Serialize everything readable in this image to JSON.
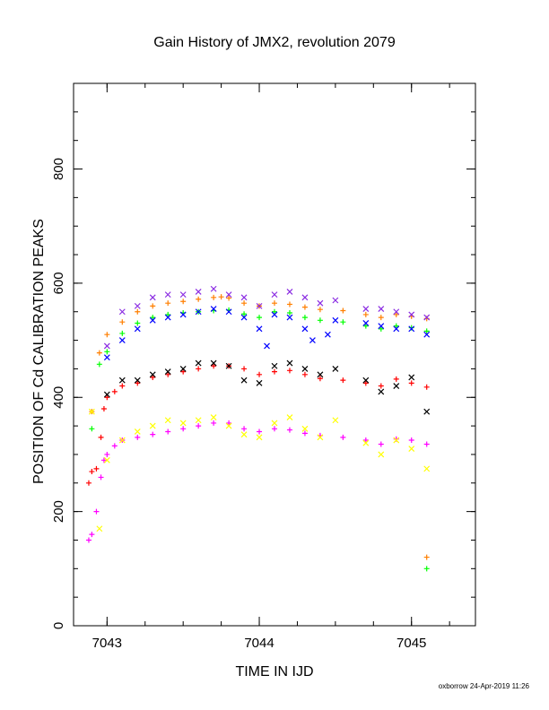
{
  "chart_data": {
    "type": "scatter",
    "title": "Gain History of JMX2, revolution 2079",
    "xlabel": "TIME IN IJD",
    "ylabel": "POSITION OF Cd CALIBRATION PEAKS",
    "xlim": [
      7042.78,
      7045.42
    ],
    "ylim": [
      0,
      950
    ],
    "x_ticks": [
      7043,
      7044,
      7045
    ],
    "y_ticks": [
      0,
      200,
      400,
      600,
      800
    ],
    "grid": false,
    "legend": "none",
    "markers": [
      "cross",
      "plus"
    ],
    "colors": {
      "orange": "#ff7f00",
      "purple": "#8a2be2",
      "green": "#00ff00",
      "blue": "#0000ff",
      "red": "#ff0000",
      "black": "#000000",
      "magenta": "#ff00ff",
      "yellow": "#ffff00"
    },
    "series": [
      {
        "color": "orange",
        "marker": "plus",
        "x": [
          7042.9,
          7042.95,
          7043.0,
          7043.1,
          7043.2,
          7043.3,
          7043.4,
          7043.5,
          7043.6,
          7043.7,
          7043.75,
          7043.8,
          7043.9,
          7044.0,
          7044.1,
          7044.2,
          7044.3,
          7044.4,
          7044.55,
          7044.7,
          7044.8,
          7044.9,
          7045.0,
          7045.1,
          7045.1
        ],
        "y": [
          375,
          478,
          510,
          532,
          550,
          560,
          565,
          568,
          572,
          575,
          576,
          574,
          565,
          560,
          565,
          563,
          558,
          554,
          552,
          545,
          540,
          545,
          542,
          538,
          120
        ]
      },
      {
        "color": "purple",
        "marker": "cross",
        "x": [
          7043.0,
          7043.1,
          7043.2,
          7043.3,
          7043.4,
          7043.5,
          7043.6,
          7043.7,
          7043.8,
          7043.9,
          7044.0,
          7044.1,
          7044.2,
          7044.3,
          7044.4,
          7044.5,
          7044.7,
          7044.8,
          7044.9,
          7045.0,
          7045.1
        ],
        "y": [
          490,
          550,
          560,
          575,
          580,
          580,
          585,
          590,
          580,
          575,
          560,
          580,
          585,
          575,
          565,
          570,
          555,
          555,
          550,
          545,
          540
        ]
      },
      {
        "color": "green",
        "marker": "plus",
        "x": [
          7042.9,
          7042.95,
          7043.0,
          7043.1,
          7043.2,
          7043.3,
          7043.4,
          7043.5,
          7043.6,
          7043.7,
          7043.8,
          7043.9,
          7044.0,
          7044.1,
          7044.2,
          7044.3,
          7044.4,
          7044.55,
          7044.7,
          7044.8,
          7044.9,
          7045.0,
          7045.1,
          7045.1
        ],
        "y": [
          345,
          458,
          480,
          512,
          530,
          540,
          545,
          548,
          550,
          552,
          553,
          546,
          540,
          550,
          548,
          540,
          535,
          532,
          525,
          520,
          525,
          522,
          516,
          100
        ]
      },
      {
        "color": "blue",
        "marker": "cross",
        "x": [
          7043.0,
          7043.1,
          7043.2,
          7043.3,
          7043.4,
          7043.5,
          7043.6,
          7043.7,
          7043.8,
          7043.9,
          7044.0,
          7044.05,
          7044.1,
          7044.2,
          7044.3,
          7044.35,
          7044.45,
          7044.5,
          7044.7,
          7044.8,
          7044.9,
          7045.0,
          7045.1
        ],
        "y": [
          470,
          500,
          520,
          535,
          540,
          545,
          550,
          555,
          550,
          540,
          520,
          490,
          545,
          540,
          520,
          500,
          510,
          535,
          530,
          525,
          520,
          520,
          510
        ]
      },
      {
        "color": "red",
        "marker": "plus",
        "x": [
          7042.88,
          7042.9,
          7042.93,
          7042.96,
          7042.98,
          7043.0,
          7043.05,
          7043.1,
          7043.2,
          7043.3,
          7043.4,
          7043.5,
          7043.6,
          7043.7,
          7043.8,
          7043.9,
          7044.0,
          7044.1,
          7044.2,
          7044.3,
          7044.4,
          7044.55,
          7044.7,
          7044.8,
          7044.9,
          7045.0,
          7045.1
        ],
        "y": [
          250,
          270,
          275,
          330,
          380,
          400,
          410,
          420,
          425,
          435,
          440,
          445,
          450,
          455,
          455,
          450,
          440,
          445,
          447,
          440,
          433,
          430,
          425,
          420,
          432,
          425,
          418
        ]
      },
      {
        "color": "black",
        "marker": "cross",
        "x": [
          7043.0,
          7043.1,
          7043.2,
          7043.3,
          7043.4,
          7043.5,
          7043.6,
          7043.7,
          7043.8,
          7043.9,
          7044.0,
          7044.1,
          7044.2,
          7044.3,
          7044.4,
          7044.5,
          7044.7,
          7044.8,
          7044.9,
          7045.0,
          7045.1
        ],
        "y": [
          405,
          430,
          430,
          440,
          445,
          450,
          460,
          460,
          455,
          430,
          425,
          455,
          460,
          450,
          440,
          450,
          430,
          410,
          420,
          435,
          375
        ]
      },
      {
        "color": "magenta",
        "marker": "plus",
        "x": [
          7042.88,
          7042.9,
          7042.93,
          7042.96,
          7042.98,
          7043.0,
          7043.05,
          7043.1,
          7043.2,
          7043.3,
          7043.4,
          7043.5,
          7043.6,
          7043.7,
          7043.8,
          7043.9,
          7044.0,
          7044.1,
          7044.2,
          7044.3,
          7044.4,
          7044.55,
          7044.7,
          7044.8,
          7044.9,
          7045.0,
          7045.1
        ],
        "y": [
          150,
          160,
          200,
          260,
          290,
          300,
          315,
          325,
          330,
          335,
          340,
          345,
          350,
          355,
          355,
          345,
          340,
          345,
          343,
          337,
          333,
          330,
          325,
          318,
          327,
          325,
          318
        ]
      },
      {
        "color": "yellow",
        "marker": "cross",
        "x": [
          7042.9,
          7042.95,
          7043.0,
          7043.1,
          7043.2,
          7043.3,
          7043.4,
          7043.5,
          7043.6,
          7043.7,
          7043.8,
          7043.9,
          7044.0,
          7044.1,
          7044.2,
          7044.3,
          7044.4,
          7044.5,
          7044.7,
          7044.8,
          7044.9,
          7045.0,
          7045.1
        ],
        "y": [
          375,
          170,
          290,
          325,
          340,
          350,
          360,
          355,
          360,
          365,
          350,
          335,
          330,
          355,
          365,
          345,
          330,
          360,
          320,
          300,
          325,
          310,
          275
        ]
      }
    ]
  },
  "footer": "oxborrow 24-Apr-2019 11:26"
}
